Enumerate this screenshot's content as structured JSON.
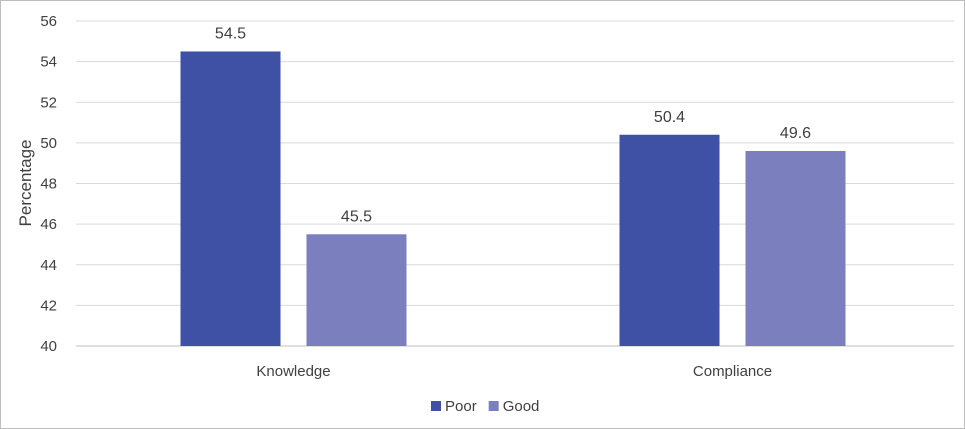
{
  "chart_data": {
    "type": "bar",
    "categories": [
      "Knowledge",
      "Compliance"
    ],
    "series": [
      {
        "name": "Poor",
        "values": [
          54.5,
          50.4
        ],
        "color": "#3f51a5"
      },
      {
        "name": "Good",
        "values": [
          45.5,
          49.6
        ],
        "color": "#7b7fbe"
      }
    ],
    "data_labels": [
      [
        "54.5",
        "50.4"
      ],
      [
        "45.5",
        "49.6"
      ]
    ],
    "ylabel": "Percentage",
    "ylim": [
      40,
      56
    ],
    "yticks": [
      40,
      42,
      44,
      46,
      48,
      50,
      52,
      54,
      56
    ],
    "grid": true,
    "legend_position": "bottom"
  }
}
